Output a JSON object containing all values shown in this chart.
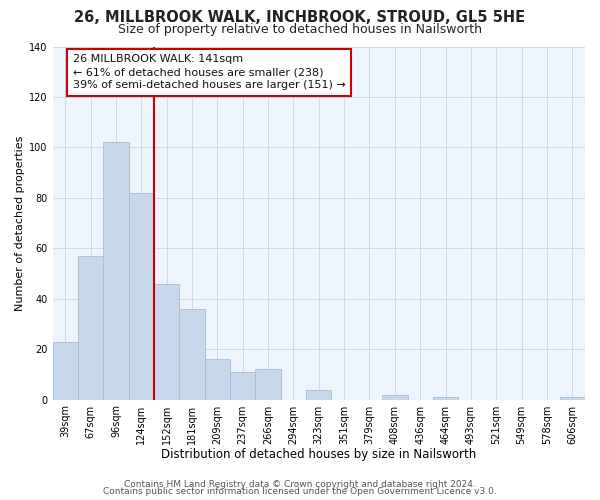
{
  "title": "26, MILLBROOK WALK, INCHBROOK, STROUD, GL5 5HE",
  "subtitle": "Size of property relative to detached houses in Nailsworth",
  "xlabel": "Distribution of detached houses by size in Nailsworth",
  "ylabel": "Number of detached properties",
  "bar_labels": [
    "39sqm",
    "67sqm",
    "96sqm",
    "124sqm",
    "152sqm",
    "181sqm",
    "209sqm",
    "237sqm",
    "266sqm",
    "294sqm",
    "323sqm",
    "351sqm",
    "379sqm",
    "408sqm",
    "436sqm",
    "464sqm",
    "493sqm",
    "521sqm",
    "549sqm",
    "578sqm",
    "606sqm"
  ],
  "bar_values": [
    23,
    57,
    102,
    82,
    46,
    36,
    16,
    11,
    12,
    0,
    4,
    0,
    0,
    2,
    0,
    1,
    0,
    0,
    0,
    0,
    1
  ],
  "bar_color": "#c8d8ec",
  "bar_edge_color": "#aabdd0",
  "vline_x_index": 3.5,
  "vline_color": "#cc0000",
  "annotation_text": "26 MILLBROOK WALK: 141sqm\n← 61% of detached houses are smaller (238)\n39% of semi-detached houses are larger (151) →",
  "annotation_box_color": "#ffffff",
  "annotation_box_edge": "#cc0000",
  "annotation_fontsize": 8.0,
  "plot_bg_color": "#eef4fb",
  "ylim": [
    0,
    140
  ],
  "yticks": [
    0,
    20,
    40,
    60,
    80,
    100,
    120,
    140
  ],
  "footer1": "Contains HM Land Registry data © Crown copyright and database right 2024.",
  "footer2": "Contains public sector information licensed under the Open Government Licence v3.0.",
  "title_fontsize": 10.5,
  "subtitle_fontsize": 9.0,
  "xlabel_fontsize": 8.5,
  "ylabel_fontsize": 8.0,
  "tick_fontsize": 7.0,
  "footer_fontsize": 6.5
}
